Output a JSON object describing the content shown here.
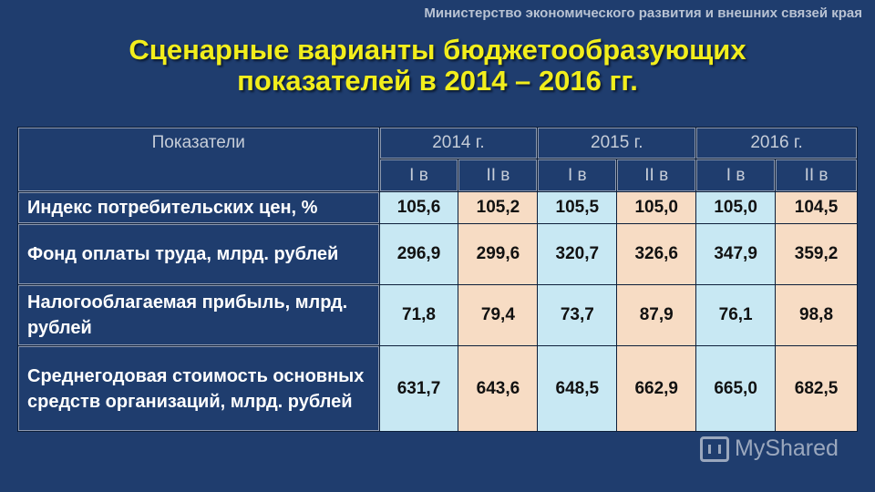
{
  "ministry": "Министерство экономического развития и внешних связей края",
  "title_line1": "Сценарные варианты бюджетообразующих",
  "title_line2": "показателей в 2014 – 2016 гг.",
  "table": {
    "header_label": "Показатели",
    "years": [
      "2014 г.",
      "2015 г.",
      "2016 г."
    ],
    "variants": [
      "I в",
      "II в",
      "I в",
      "II в",
      "I в",
      "II в"
    ],
    "rows": [
      {
        "label": "Индекс потребительских цен, %",
        "values": [
          "105,6",
          "105,2",
          "105,5",
          "105,0",
          "105,0",
          "104,5"
        ]
      },
      {
        "label": "Фонд оплаты труда, млрд. рублей",
        "values": [
          "296,9",
          "299,6",
          "320,7",
          "326,6",
          "347,9",
          "359,2"
        ]
      },
      {
        "label": "Налогооблагаемая прибыль, млрд. рублей",
        "values": [
          "71,8",
          "79,4",
          "73,7",
          "87,9",
          "76,1",
          "98,8"
        ]
      },
      {
        "label": "Среднегодовая стоимость основных средств организаций, млрд. рублей",
        "values": [
          "631,7",
          "643,6",
          "648,5",
          "662,9",
          "665,0",
          "682,5"
        ]
      }
    ]
  },
  "watermark": "MyShared",
  "colors": {
    "background": "#1f3d6e",
    "title": "#f2ee1c",
    "variant1_cell": "#c8e8f3",
    "variant2_cell": "#f7dcc4"
  }
}
